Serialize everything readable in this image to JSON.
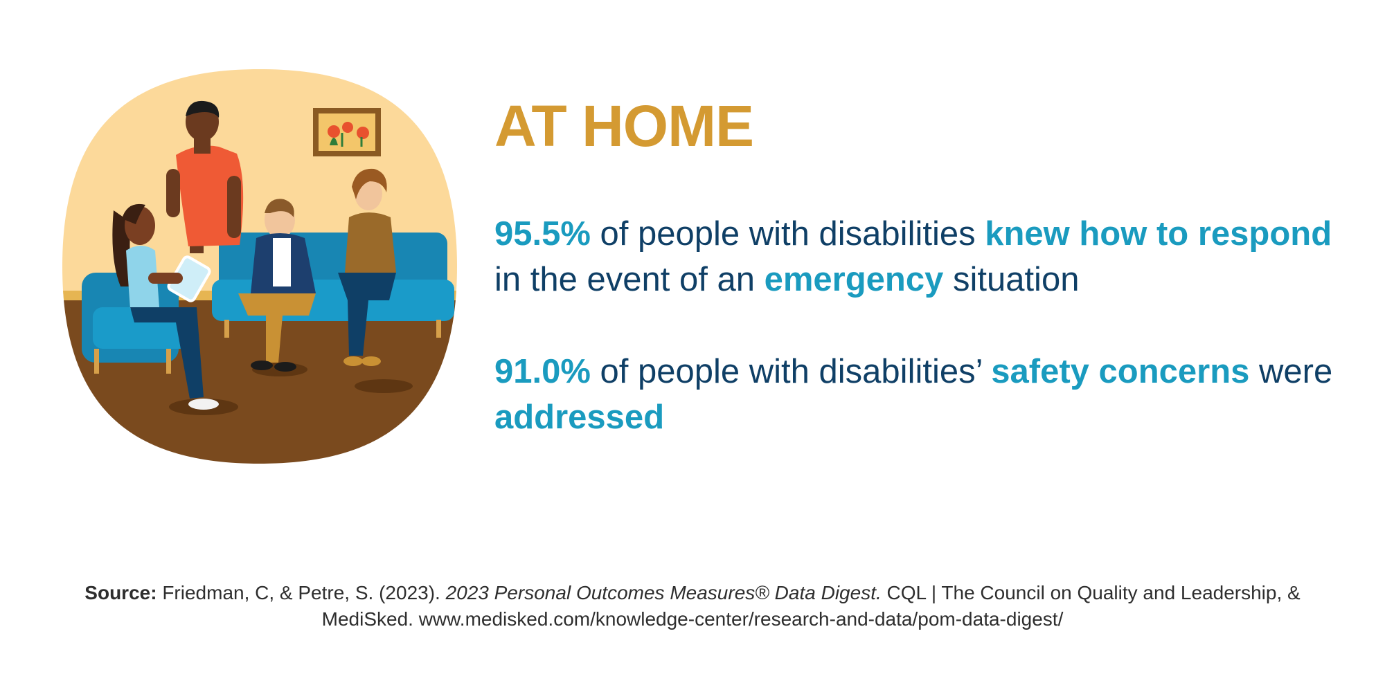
{
  "heading": "AT HOME",
  "stats": [
    {
      "p1": "95.5%",
      "p2": " of people with disabilities ",
      "p3": "knew how to respond",
      "p4": " in the event of an ",
      "p5": "emergency",
      "p6": " situation"
    },
    {
      "p1": "91.0%",
      "p2": " of people with disabilities’ ",
      "p3": "safety concerns",
      "p4": " were ",
      "p5": "addressed"
    }
  ],
  "source": {
    "label": "Source:",
    "authors": " Friedman, C, & Petre, S. (2023). ",
    "title": "2023 Personal Outcomes Measures® Data Digest.",
    "rest": " CQL | The Council on Quality and Leadership, & MediSked. www.medisked.com/knowledge-center/research-and-data/pom-data-digest/"
  },
  "colors": {
    "heading": "#d49a32",
    "body_text": "#0f3f66",
    "highlight": "#1a9bbf",
    "wall": "#fcd99a",
    "floor": "#7a4a1e",
    "couch": "#1a8fbf"
  },
  "illustration": {
    "icon": "living-room-group-illustration"
  }
}
